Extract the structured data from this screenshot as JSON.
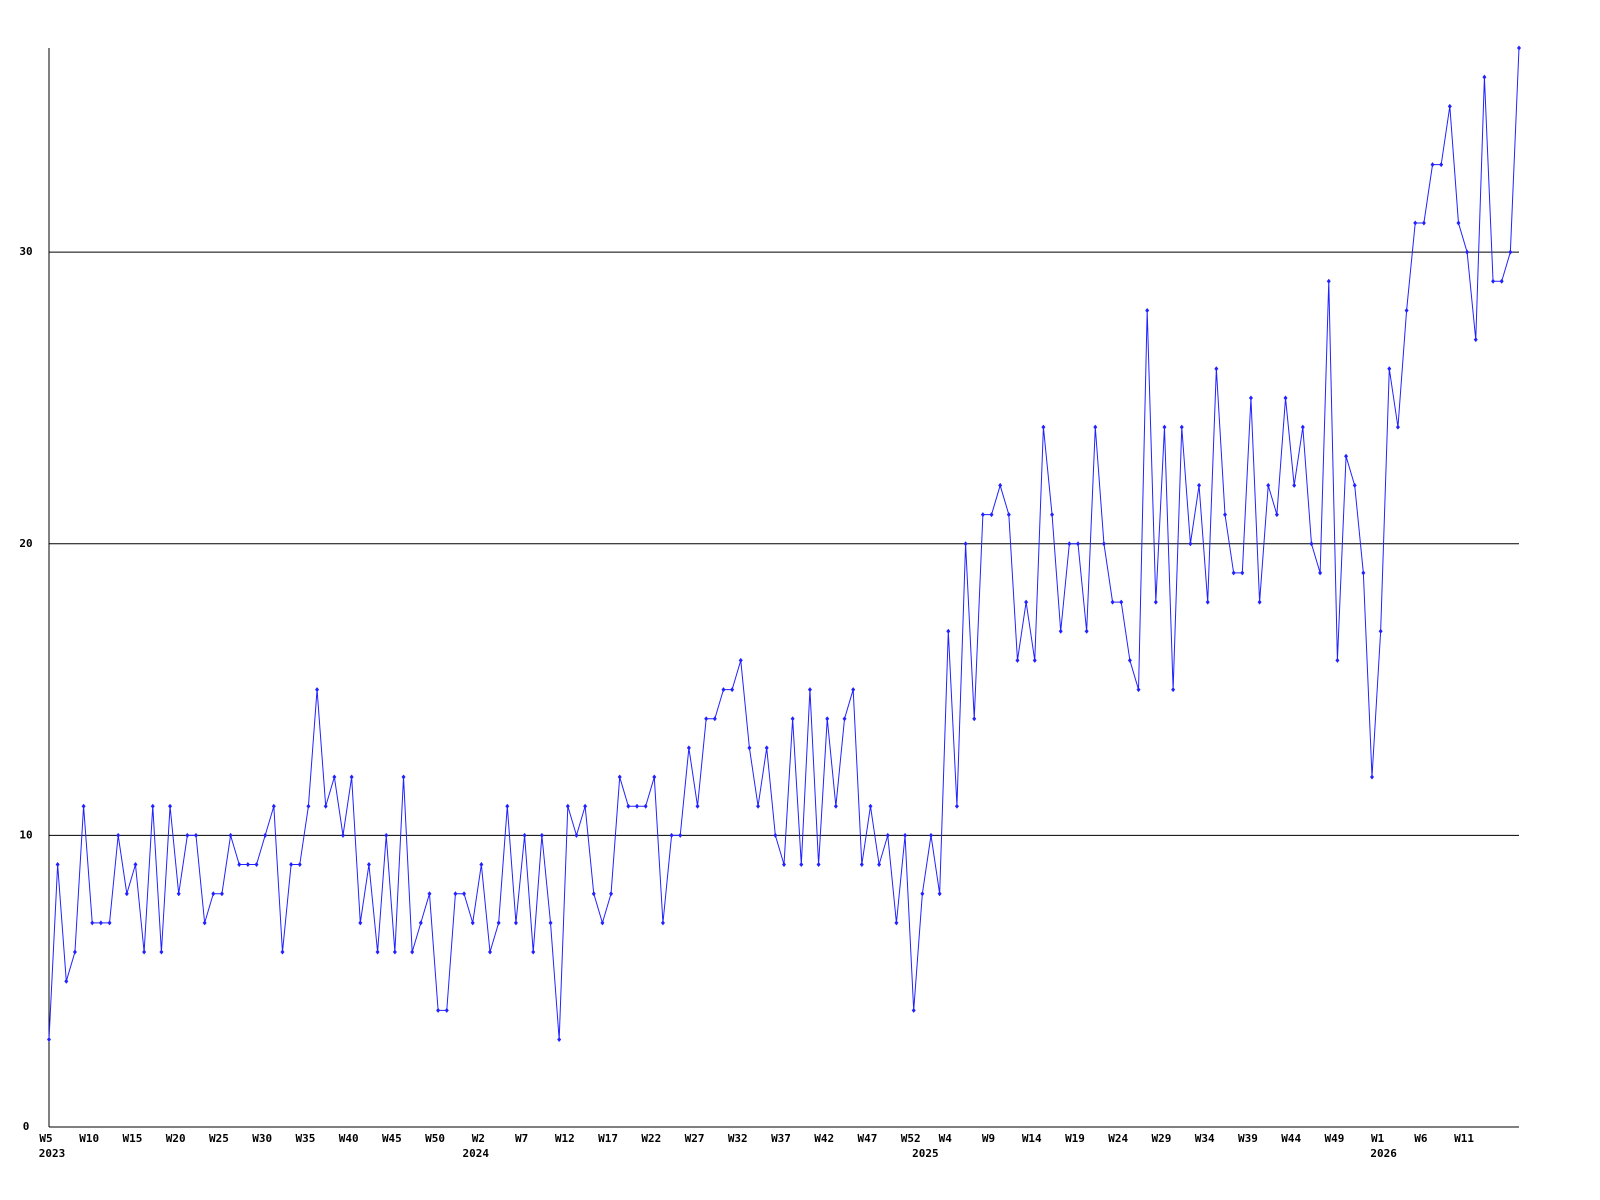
{
  "chart_data": {
    "type": "line",
    "categories": [
      "W5",
      null,
      null,
      null,
      null,
      "W10",
      null,
      null,
      null,
      null,
      "W15",
      null,
      null,
      null,
      null,
      "W20",
      null,
      null,
      null,
      null,
      "W25",
      null,
      null,
      null,
      null,
      "W30",
      null,
      null,
      null,
      null,
      "W35",
      null,
      null,
      null,
      null,
      "W40",
      null,
      null,
      null,
      null,
      "W45",
      null,
      null,
      null,
      null,
      "W50",
      null,
      null,
      null,
      null,
      "W2",
      null,
      null,
      null,
      null,
      "W7",
      null,
      null,
      null,
      null,
      "W12",
      null,
      null,
      null,
      null,
      "W17",
      null,
      null,
      null,
      null,
      "W22",
      null,
      null,
      null,
      null,
      "W27",
      null,
      null,
      null,
      null,
      "W32",
      null,
      null,
      null,
      null,
      "W37",
      null,
      null,
      null,
      null,
      "W42",
      null,
      null,
      null,
      null,
      "W47",
      null,
      null,
      null,
      null,
      "W52",
      null,
      null,
      null,
      "W4",
      null,
      null,
      null,
      null,
      "W9",
      null,
      null,
      null,
      null,
      "W14",
      null,
      null,
      null,
      null,
      "W19",
      null,
      null,
      null,
      null,
      "W24",
      null,
      null,
      null,
      null,
      "W29",
      null,
      null,
      null,
      null,
      "W34",
      null,
      null,
      null,
      null,
      "W39",
      null,
      null,
      null,
      null,
      "W44",
      null,
      null,
      null,
      null,
      "W49",
      null,
      null,
      null,
      null,
      "W1",
      null,
      null,
      null,
      null,
      "W6",
      null,
      null,
      null,
      null,
      "W11",
      null,
      null,
      null,
      null,
      null,
      null
    ],
    "category_years": [
      "2023",
      null,
      null,
      null,
      null,
      null,
      null,
      null,
      null,
      null,
      null,
      null,
      null,
      null,
      null,
      null,
      null,
      null,
      null,
      null,
      null,
      null,
      null,
      null,
      null,
      null,
      null,
      null,
      null,
      null,
      null,
      null,
      null,
      null,
      null,
      null,
      null,
      null,
      null,
      null,
      null,
      null,
      null,
      null,
      null,
      null,
      null,
      null,
      null,
      "2024",
      null,
      null,
      null,
      null,
      null,
      null,
      null,
      null,
      null,
      null,
      null,
      null,
      null,
      null,
      null,
      null,
      null,
      null,
      null,
      null,
      null,
      null,
      null,
      null,
      null,
      null,
      null,
      null,
      null,
      null,
      null,
      null,
      null,
      null,
      null,
      null,
      null,
      null,
      null,
      null,
      null,
      null,
      null,
      null,
      null,
      null,
      null,
      null,
      null,
      null,
      null,
      "2025",
      null,
      null,
      null,
      null,
      null,
      null,
      null,
      null,
      null,
      null,
      null,
      null,
      null,
      null,
      null,
      null,
      null,
      null,
      null,
      null,
      null,
      null,
      null,
      null,
      null,
      null,
      null,
      null,
      null,
      null,
      null,
      null,
      null,
      null,
      null,
      null,
      null,
      null,
      null,
      null,
      null,
      null,
      null,
      null,
      null,
      null,
      null,
      null,
      null,
      null,
      null,
      null,
      "2026",
      null,
      null,
      null,
      null,
      null,
      null,
      null,
      null,
      null,
      null,
      null,
      null,
      null,
      null,
      null,
      null
    ],
    "series": [
      {
        "color": "#2222ff",
        "values": [
          3,
          9,
          5,
          6,
          11,
          7,
          7,
          7,
          10,
          8,
          9,
          6,
          11,
          6,
          11,
          8,
          10,
          10,
          7,
          8,
          8,
          10,
          9,
          9,
          9,
          10,
          11,
          6,
          9,
          9,
          11,
          15,
          11,
          12,
          10,
          12,
          7,
          9,
          6,
          10,
          6,
          12,
          6,
          7,
          8,
          4,
          4,
          8,
          8,
          7,
          9,
          6,
          7,
          11,
          7,
          10,
          6,
          10,
          7,
          3,
          11,
          10,
          11,
          8,
          7,
          8,
          12,
          11,
          11,
          11,
          12,
          7,
          10,
          10,
          13,
          11,
          14,
          14,
          15,
          15,
          16,
          13,
          11,
          13,
          10,
          9,
          14,
          9,
          15,
          9,
          14,
          11,
          14,
          15,
          9,
          11,
          9,
          10,
          7,
          10,
          4,
          8,
          10,
          8,
          17,
          11,
          20,
          14,
          21,
          21,
          22,
          21,
          16,
          18,
          16,
          24,
          21,
          17,
          20,
          20,
          17,
          24,
          20,
          18,
          18,
          16,
          15,
          28,
          18,
          24,
          15,
          24,
          20,
          22,
          18,
          26,
          21,
          19,
          19,
          25,
          18,
          22,
          21,
          25,
          22,
          24,
          20,
          19,
          29,
          16,
          23,
          22,
          19,
          12,
          17,
          26,
          24,
          28,
          31,
          31,
          33,
          33,
          35,
          31,
          30,
          27,
          36,
          29,
          29,
          30,
          37
        ]
      }
    ],
    "ylim": [
      0,
      37
    ],
    "yticks": [
      0,
      10,
      20,
      30
    ],
    "grid": true
  }
}
